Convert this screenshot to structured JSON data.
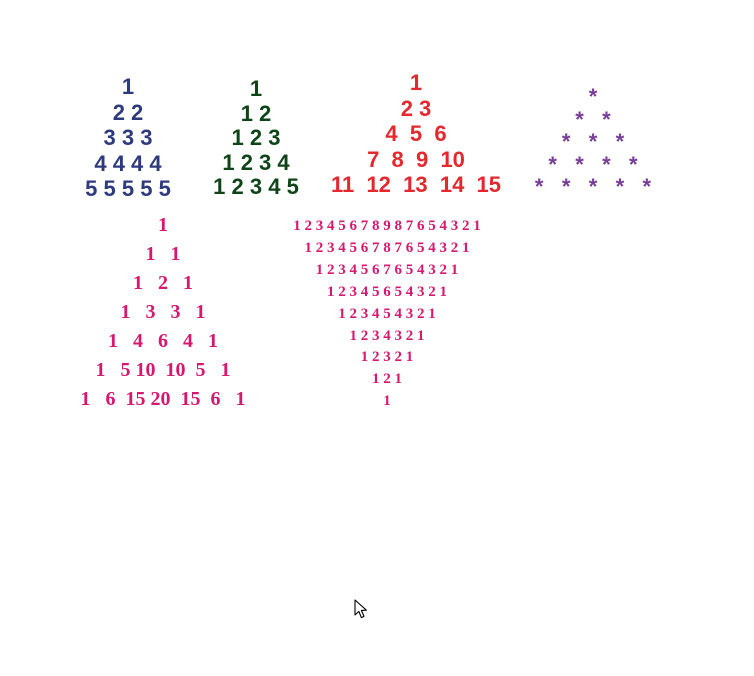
{
  "colors": {
    "navy": "#2E3A7E",
    "dark_green": "#0E4418",
    "red": "#E4282E",
    "purple": "#7A3C99",
    "magenta": "#D6186E"
  },
  "pyramids": [
    {
      "id": "p-repeat",
      "name": "number-repeat-pyramid",
      "font": "sans",
      "color": "#2E3A7E",
      "size": 22,
      "row_gap": 25.5,
      "rows": [
        "1",
        "2 2",
        "3 3 3",
        "4 4 4 4",
        "5 5 5 5 5"
      ]
    },
    {
      "id": "p-count",
      "name": "counting-pyramid",
      "font": "sans",
      "color": "#0E4418",
      "size": 22,
      "row_gap": 24.5,
      "rows": [
        "1",
        "1 2",
        "1 2 3",
        "1 2 3 4",
        "1 2 3 4 5"
      ]
    },
    {
      "id": "p-float",
      "name": "floyd-triangle",
      "font": "sans",
      "color": "#E4282E",
      "size": 22,
      "row_gap": 25.5,
      "rows": [
        "1",
        "2 3",
        "4  5  6",
        "7  8  9  10",
        "11  12  13  14  15"
      ]
    },
    {
      "id": "p-star",
      "name": "star-pyramid",
      "font": "sans",
      "color": "#7A3C99",
      "size": 22,
      "row_gap": 22.5,
      "rows": [
        "*",
        "*   *",
        "*   *   *",
        "*   *   *   *",
        "*   *   *   *   *"
      ]
    },
    {
      "id": "p-pascal",
      "name": "pascal-triangle",
      "font": "serif",
      "color": "#D6186E",
      "size": 20,
      "row_gap": 29,
      "rows": [
        "1",
        "1   1",
        "1   2   1",
        "1   3   3   1",
        "1   4   6   4   1",
        "1   5 10  10  5   1",
        "1   6  15 20  15  6   1"
      ]
    },
    {
      "id": "p-inv",
      "name": "inverted-number-pyramid",
      "font": "serif",
      "color": "#D6186E",
      "size": 15,
      "row_gap": 21.9,
      "rows": [
        "1 2 3 4 5 6 7 8 9 8 7 6 5 4 3 2 1",
        "1 2 3 4 5 6 7 8 7 6 5 4 3 2 1",
        "1 2 3 4 5 6 7 6 5 4 3 2 1",
        "1 2 3 4 5 6 5 4 3 2 1",
        "1 2 3 4 5 4 3 2 1",
        "1 2 3 4 3 2 1",
        "1 2 3 2 1",
        "1 2 1",
        "1"
      ]
    }
  ]
}
